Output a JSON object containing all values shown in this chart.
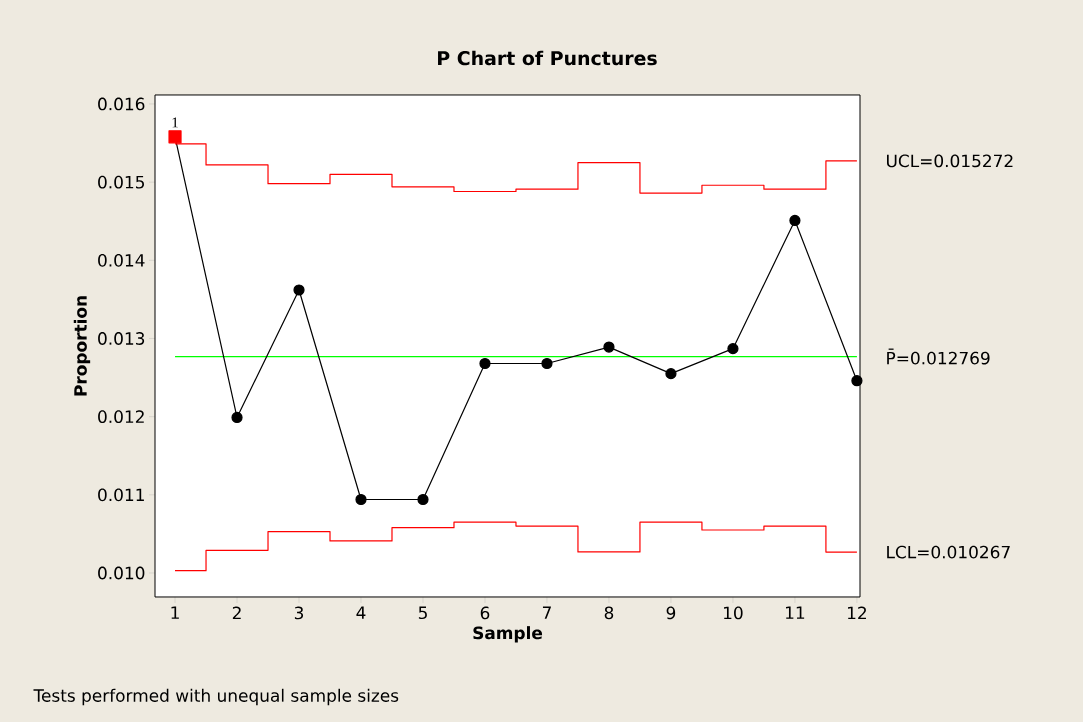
{
  "chart_data": {
    "type": "line",
    "title": "P Chart of Punctures",
    "xlabel": "Sample",
    "ylabel": "Proportion",
    "x": [
      1,
      2,
      3,
      4,
      5,
      6,
      7,
      8,
      9,
      10,
      11,
      12
    ],
    "xlim": [
      0.677,
      12.05
    ],
    "xticks": [
      1,
      2,
      3,
      4,
      5,
      6,
      7,
      8,
      9,
      10,
      11,
      12
    ],
    "ylim": [
      0.009693,
      0.016115
    ],
    "yticks": [
      {
        "value": 0.01,
        "label": "0.010"
      },
      {
        "value": 0.011,
        "label": "0.011"
      },
      {
        "value": 0.012,
        "label": "0.012"
      },
      {
        "value": 0.013,
        "label": "0.013"
      },
      {
        "value": 0.014,
        "label": "0.014"
      },
      {
        "value": 0.015,
        "label": "0.015"
      },
      {
        "value": 0.016,
        "label": "0.016"
      }
    ],
    "series": [
      {
        "type": "line",
        "color": "#000000",
        "marker": "none",
        "values": [
          0.01558,
          0.01199,
          0.01362,
          0.01094,
          0.01094,
          0.01268,
          0.01268,
          0.01289,
          0.01255,
          0.01287,
          0.01451,
          0.01246
        ]
      },
      {
        "type": "scatter",
        "color": "#000000",
        "marker": "circle",
        "x": [
          2,
          3,
          4,
          5,
          6,
          7,
          8,
          9,
          10,
          11,
          12
        ],
        "values": [
          0.01199,
          0.01362,
          0.01094,
          0.01094,
          0.01268,
          0.01268,
          0.01289,
          0.01255,
          0.01287,
          0.01451,
          0.01246
        ]
      },
      {
        "type": "scatter",
        "color": "#ff0000",
        "marker": "square",
        "x": [
          1
        ],
        "values": [
          0.01558
        ]
      },
      {
        "type": "step",
        "name": "UCL=0.015272",
        "color": "#ff0000",
        "marker": "none",
        "values": [
          0.01549,
          0.01522,
          0.01498,
          0.0151,
          0.01494,
          0.01488,
          0.01491,
          0.01525,
          0.01486,
          0.01496,
          0.01491,
          0.015272
        ]
      },
      {
        "type": "step",
        "name": "LCL=0.010267",
        "color": "#ff0000",
        "marker": "none",
        "values": [
          0.01003,
          0.01029,
          0.01053,
          0.01041,
          0.01058,
          0.01065,
          0.0106,
          0.01027,
          0.01065,
          0.01055,
          0.0106,
          0.010267
        ]
      }
    ],
    "ref_lines": [
      {
        "axis": "y",
        "value": 0.012769,
        "label": "P̄=0.012769",
        "color": "#00ff00"
      }
    ],
    "annotations": [
      {
        "text": "1",
        "x": 1,
        "y": 0.01558
      },
      "Tests performed with unequal sample sizes"
    ],
    "legend": false
  }
}
